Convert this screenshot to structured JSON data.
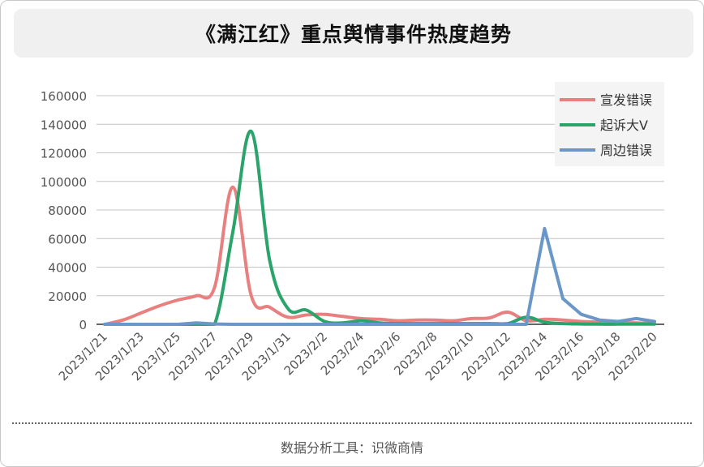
{
  "title": "《满江红》重点舆情事件热度趋势",
  "footer": "数据分析工具：识微商情",
  "chart_data": {
    "type": "line",
    "title": "《满江红》重点舆情事件热度趋势",
    "x": [
      "2023/1/21",
      "2023/1/22",
      "2023/1/23",
      "2023/1/24",
      "2023/1/25",
      "2023/1/26",
      "2023/1/27",
      "2023/1/28",
      "2023/1/29",
      "2023/1/30",
      "2023/1/31",
      "2023/2/1",
      "2023/2/2",
      "2023/2/3",
      "2023/2/4",
      "2023/2/5",
      "2023/2/6",
      "2023/2/7",
      "2023/2/8",
      "2023/2/9",
      "2023/2/10",
      "2023/2/11",
      "2023/2/12",
      "2023/2/13",
      "2023/2/14",
      "2023/2/15",
      "2023/2/16",
      "2023/2/17",
      "2023/2/18",
      "2023/2/19",
      "2023/2/20"
    ],
    "xticks": [
      "2023/1/21",
      "2023/1/23",
      "2023/1/25",
      "2023/1/27",
      "2023/1/29",
      "2023/1/31",
      "2023/2/2",
      "2023/2/4",
      "2023/2/6",
      "2023/2/8",
      "2023/2/10",
      "2023/2/12",
      "2023/2/14",
      "2023/2/16",
      "2023/2/18",
      "2023/2/20"
    ],
    "yticks": [
      "0",
      "20000",
      "40000",
      "60000",
      "80000",
      "100000",
      "120000",
      "140000",
      "160000"
    ],
    "ylim": [
      0,
      160000
    ],
    "grid": true,
    "legend_position": "top-right",
    "series": [
      {
        "name": "宣发错误",
        "color": "#e88080",
        "values": [
          0,
          3000,
          8000,
          13000,
          17000,
          20000,
          26000,
          96000,
          20000,
          12000,
          5000,
          6500,
          7000,
          5500,
          4000,
          3500,
          2500,
          3000,
          3000,
          2500,
          4000,
          4500,
          8500,
          2500,
          3500,
          3000,
          2000,
          1500,
          1000,
          1000,
          500
        ]
      },
      {
        "name": "起诉大V",
        "color": "#2aa46a",
        "values": [
          0,
          0,
          0,
          0,
          0,
          0,
          0,
          65000,
          135000,
          45000,
          11000,
          10000,
          2000,
          1000,
          2500,
          1000,
          500,
          500,
          500,
          500,
          500,
          500,
          500,
          5000,
          1500,
          500,
          200,
          100,
          100,
          100,
          100
        ]
      },
      {
        "name": "周边错误",
        "color": "#6a96c8",
        "values": [
          0,
          0,
          0,
          0,
          0,
          1000,
          200,
          0,
          0,
          0,
          0,
          0,
          0,
          0,
          0,
          0,
          0,
          0,
          0,
          0,
          0,
          0,
          0,
          0,
          67000,
          18000,
          7000,
          3000,
          2000,
          4000,
          2000
        ]
      }
    ]
  }
}
